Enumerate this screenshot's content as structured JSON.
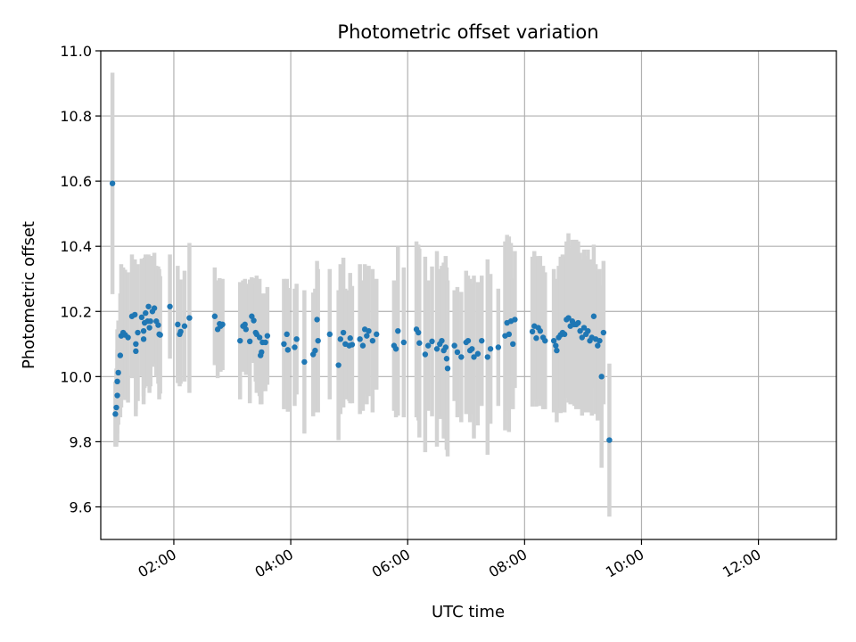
{
  "chart_data": {
    "type": "scatter",
    "title": "Photometric offset variation",
    "xlabel": "UTC time",
    "ylabel": "Photometric offset",
    "xlim": [
      "00:45",
      "13:20"
    ],
    "ylim": [
      9.5,
      11.0
    ],
    "x_ticks": [
      "02:00",
      "04:00",
      "06:00",
      "08:00",
      "10:00",
      "12:00"
    ],
    "y_ticks": [
      "9.6",
      "9.8",
      "10.0",
      "10.2",
      "10.4",
      "10.6",
      "10.8",
      "11.0"
    ],
    "grid": true,
    "colors": {
      "marker": "#1f77b4",
      "errorbar": "#d3d3d3",
      "grid": "#b0b0b0"
    },
    "series": [
      {
        "error_bars": true,
        "points": [
          {
            "x": "00:57",
            "y": 10.593,
            "err": 0.34
          },
          {
            "x": "01:00",
            "y": 9.885,
            "err": 0.1
          },
          {
            "x": "01:01",
            "y": 9.905,
            "err": 0.12
          },
          {
            "x": "01:02",
            "y": 9.942,
            "err": 0.14
          },
          {
            "x": "01:02",
            "y": 9.985,
            "err": 0.16
          },
          {
            "x": "01:03",
            "y": 10.012,
            "err": 0.16
          },
          {
            "x": "01:05",
            "y": 10.065,
            "err": 0.19
          },
          {
            "x": "01:06",
            "y": 10.125,
            "err": 0.22
          },
          {
            "x": "01:08",
            "y": 10.135,
            "err": 0.2
          },
          {
            "x": "01:10",
            "y": 10.128,
            "err": 0.2
          },
          {
            "x": "01:13",
            "y": 10.12,
            "err": 0.2
          },
          {
            "x": "01:17",
            "y": 10.185,
            "err": 0.19
          },
          {
            "x": "01:20",
            "y": 10.19,
            "err": 0.17
          },
          {
            "x": "01:21",
            "y": 10.1,
            "err": 0.2
          },
          {
            "x": "01:21",
            "y": 10.078,
            "err": 0.2
          },
          {
            "x": "01:23",
            "y": 10.135,
            "err": 0.21
          },
          {
            "x": "01:27",
            "y": 10.182,
            "err": 0.18
          },
          {
            "x": "01:29",
            "y": 10.14,
            "err": 0.2
          },
          {
            "x": "01:29",
            "y": 10.115,
            "err": 0.2
          },
          {
            "x": "01:30",
            "y": 10.165,
            "err": 0.2
          },
          {
            "x": "01:31",
            "y": 10.195,
            "err": 0.18
          },
          {
            "x": "01:33",
            "y": 10.17,
            "err": 0.2
          },
          {
            "x": "01:34",
            "y": 10.215,
            "err": 0.16
          },
          {
            "x": "01:35",
            "y": 10.15,
            "err": 0.2
          },
          {
            "x": "01:36",
            "y": 10.17,
            "err": 0.2
          },
          {
            "x": "01:38",
            "y": 10.2,
            "err": 0.17
          },
          {
            "x": "01:40",
            "y": 10.21,
            "err": 0.17
          },
          {
            "x": "01:42",
            "y": 10.17,
            "err": 0.17
          },
          {
            "x": "01:44",
            "y": 10.158,
            "err": 0.18
          },
          {
            "x": "01:45",
            "y": 10.13,
            "err": 0.2
          },
          {
            "x": "01:46",
            "y": 10.128,
            "err": 0.18
          },
          {
            "x": "01:56",
            "y": 10.215,
            "err": 0.16
          },
          {
            "x": "02:04",
            "y": 10.16,
            "err": 0.18
          },
          {
            "x": "02:06",
            "y": 10.13,
            "err": 0.16
          },
          {
            "x": "02:07",
            "y": 10.138,
            "err": 0.16
          },
          {
            "x": "02:11",
            "y": 10.155,
            "err": 0.17
          },
          {
            "x": "02:16",
            "y": 10.18,
            "err": 0.23
          },
          {
            "x": "02:42",
            "y": 10.185,
            "err": 0.15
          },
          {
            "x": "02:45",
            "y": 10.145,
            "err": 0.15
          },
          {
            "x": "02:47",
            "y": 10.162,
            "err": 0.14
          },
          {
            "x": "02:48",
            "y": 10.155,
            "err": 0.14
          },
          {
            "x": "02:50",
            "y": 10.16,
            "err": 0.14
          },
          {
            "x": "03:08",
            "y": 10.11,
            "err": 0.18
          },
          {
            "x": "03:11",
            "y": 10.155,
            "err": 0.14
          },
          {
            "x": "03:13",
            "y": 10.16,
            "err": 0.14
          },
          {
            "x": "03:14",
            "y": 10.145,
            "err": 0.14
          },
          {
            "x": "03:18",
            "y": 10.108,
            "err": 0.19
          },
          {
            "x": "03:20",
            "y": 10.185,
            "err": 0.12
          },
          {
            "x": "03:22",
            "y": 10.172,
            "err": 0.13
          },
          {
            "x": "03:24",
            "y": 10.135,
            "err": 0.15
          },
          {
            "x": "03:25",
            "y": 10.13,
            "err": 0.18
          },
          {
            "x": "03:28",
            "y": 10.12,
            "err": 0.18
          },
          {
            "x": "03:29",
            "y": 10.065,
            "err": 0.15
          },
          {
            "x": "03:30",
            "y": 10.075,
            "err": 0.16
          },
          {
            "x": "03:31",
            "y": 10.105,
            "err": 0.15
          },
          {
            "x": "03:34",
            "y": 10.105,
            "err": 0.15
          },
          {
            "x": "03:36",
            "y": 10.125,
            "err": 0.15
          },
          {
            "x": "03:53",
            "y": 10.1,
            "err": 0.2
          },
          {
            "x": "03:56",
            "y": 10.13,
            "err": 0.17
          },
          {
            "x": "03:57",
            "y": 10.082,
            "err": 0.19
          },
          {
            "x": "04:04",
            "y": 10.09,
            "err": 0.18
          },
          {
            "x": "04:06",
            "y": 10.115,
            "err": 0.17
          },
          {
            "x": "04:14",
            "y": 10.045,
            "err": 0.22
          },
          {
            "x": "04:23",
            "y": 10.068,
            "err": 0.19
          },
          {
            "x": "04:25",
            "y": 10.08,
            "err": 0.19
          },
          {
            "x": "04:27",
            "y": 10.175,
            "err": 0.18
          },
          {
            "x": "04:28",
            "y": 10.11,
            "err": 0.22
          },
          {
            "x": "04:40",
            "y": 10.13,
            "err": 0.2
          },
          {
            "x": "04:49",
            "y": 10.035,
            "err": 0.23
          },
          {
            "x": "04:51",
            "y": 10.115,
            "err": 0.23
          },
          {
            "x": "04:54",
            "y": 10.135,
            "err": 0.23
          },
          {
            "x": "04:56",
            "y": 10.1,
            "err": 0.17
          },
          {
            "x": "05:00",
            "y": 10.095,
            "err": 0.17
          },
          {
            "x": "05:01",
            "y": 10.118,
            "err": 0.2
          },
          {
            "x": "05:03",
            "y": 10.098,
            "err": 0.18
          },
          {
            "x": "05:11",
            "y": 10.115,
            "err": 0.23
          },
          {
            "x": "05:14",
            "y": 10.095,
            "err": 0.2
          },
          {
            "x": "05:16",
            "y": 10.145,
            "err": 0.2
          },
          {
            "x": "05:18",
            "y": 10.125,
            "err": 0.21
          },
          {
            "x": "05:20",
            "y": 10.14,
            "err": 0.2
          },
          {
            "x": "05:24",
            "y": 10.11,
            "err": 0.22
          },
          {
            "x": "05:28",
            "y": 10.13,
            "err": 0.17
          },
          {
            "x": "05:46",
            "y": 10.095,
            "err": 0.2
          },
          {
            "x": "05:48",
            "y": 10.085,
            "err": 0.21
          },
          {
            "x": "05:50",
            "y": 10.14,
            "err": 0.26
          },
          {
            "x": "05:56",
            "y": 10.105,
            "err": 0.23
          },
          {
            "x": "06:09",
            "y": 10.145,
            "err": 0.27
          },
          {
            "x": "06:11",
            "y": 10.135,
            "err": 0.27
          },
          {
            "x": "06:12",
            "y": 10.103,
            "err": 0.29
          },
          {
            "x": "06:18",
            "y": 10.068,
            "err": 0.3
          },
          {
            "x": "06:21",
            "y": 10.095,
            "err": 0.2
          },
          {
            "x": "06:25",
            "y": 10.108,
            "err": 0.23
          },
          {
            "x": "06:30",
            "y": 10.085,
            "err": 0.3
          },
          {
            "x": "06:33",
            "y": 10.1,
            "err": 0.23
          },
          {
            "x": "06:35",
            "y": 10.11,
            "err": 0.23
          },
          {
            "x": "06:37",
            "y": 10.08,
            "err": 0.27
          },
          {
            "x": "06:39",
            "y": 10.09,
            "err": 0.28
          },
          {
            "x": "06:40",
            "y": 10.055,
            "err": 0.28
          },
          {
            "x": "06:41",
            "y": 10.025,
            "err": 0.27
          },
          {
            "x": "06:48",
            "y": 10.095,
            "err": 0.17
          },
          {
            "x": "06:51",
            "y": 10.075,
            "err": 0.2
          },
          {
            "x": "06:55",
            "y": 10.06,
            "err": 0.2
          },
          {
            "x": "07:00",
            "y": 10.105,
            "err": 0.22
          },
          {
            "x": "07:02",
            "y": 10.11,
            "err": 0.2
          },
          {
            "x": "07:04",
            "y": 10.08,
            "err": 0.22
          },
          {
            "x": "07:06",
            "y": 10.085,
            "err": 0.2
          },
          {
            "x": "07:08",
            "y": 10.06,
            "err": 0.25
          },
          {
            "x": "07:12",
            "y": 10.07,
            "err": 0.22
          },
          {
            "x": "07:16",
            "y": 10.11,
            "err": 0.2
          },
          {
            "x": "07:22",
            "y": 10.06,
            "err": 0.3
          },
          {
            "x": "07:25",
            "y": 10.085,
            "err": 0.23
          },
          {
            "x": "07:33",
            "y": 10.09,
            "err": 0.18
          },
          {
            "x": "07:40",
            "y": 10.125,
            "err": 0.29
          },
          {
            "x": "07:42",
            "y": 10.165,
            "err": 0.27
          },
          {
            "x": "07:44",
            "y": 10.13,
            "err": 0.3
          },
          {
            "x": "07:46",
            "y": 10.17,
            "err": 0.24
          },
          {
            "x": "07:48",
            "y": 10.1,
            "err": 0.2
          },
          {
            "x": "07:50",
            "y": 10.175,
            "err": 0.21
          },
          {
            "x": "08:08",
            "y": 10.138,
            "err": 0.23
          },
          {
            "x": "08:10",
            "y": 10.155,
            "err": 0.23
          },
          {
            "x": "08:12",
            "y": 10.118,
            "err": 0.21
          },
          {
            "x": "08:14",
            "y": 10.15,
            "err": 0.22
          },
          {
            "x": "08:16",
            "y": 10.14,
            "err": 0.23
          },
          {
            "x": "08:19",
            "y": 10.12,
            "err": 0.22
          },
          {
            "x": "08:21",
            "y": 10.11,
            "err": 0.21
          },
          {
            "x": "08:30",
            "y": 10.11,
            "err": 0.22
          },
          {
            "x": "08:32",
            "y": 10.095,
            "err": 0.2
          },
          {
            "x": "08:33",
            "y": 10.08,
            "err": 0.22
          },
          {
            "x": "08:35",
            "y": 10.12,
            "err": 0.22
          },
          {
            "x": "08:37",
            "y": 10.128,
            "err": 0.24
          },
          {
            "x": "08:39",
            "y": 10.135,
            "err": 0.24
          },
          {
            "x": "08:41",
            "y": 10.13,
            "err": 0.24
          },
          {
            "x": "08:43",
            "y": 10.175,
            "err": 0.24
          },
          {
            "x": "08:45",
            "y": 10.18,
            "err": 0.26
          },
          {
            "x": "08:47",
            "y": 10.155,
            "err": 0.24
          },
          {
            "x": "08:49",
            "y": 10.17,
            "err": 0.25
          },
          {
            "x": "08:51",
            "y": 10.16,
            "err": 0.25
          },
          {
            "x": "08:53",
            "y": 10.16,
            "err": 0.26
          },
          {
            "x": "08:55",
            "y": 10.165,
            "err": 0.25
          },
          {
            "x": "08:57",
            "y": 10.14,
            "err": 0.24
          },
          {
            "x": "08:59",
            "y": 10.12,
            "err": 0.24
          },
          {
            "x": "09:01",
            "y": 10.15,
            "err": 0.24
          },
          {
            "x": "09:03",
            "y": 10.13,
            "err": 0.24
          },
          {
            "x": "09:05",
            "y": 10.14,
            "err": 0.25
          },
          {
            "x": "09:07",
            "y": 10.11,
            "err": 0.22
          },
          {
            "x": "09:09",
            "y": 10.12,
            "err": 0.24
          },
          {
            "x": "09:11",
            "y": 10.185,
            "err": 0.22
          },
          {
            "x": "09:13",
            "y": 10.115,
            "err": 0.23
          },
          {
            "x": "09:15",
            "y": 10.095,
            "err": 0.23
          },
          {
            "x": "09:17",
            "y": 10.11,
            "err": 0.22
          },
          {
            "x": "09:19",
            "y": 10.0,
            "err": 0.28
          },
          {
            "x": "09:21",
            "y": 10.135,
            "err": 0.22
          },
          {
            "x": "09:27",
            "y": 9.805,
            "err": 0.235
          }
        ]
      }
    ]
  }
}
